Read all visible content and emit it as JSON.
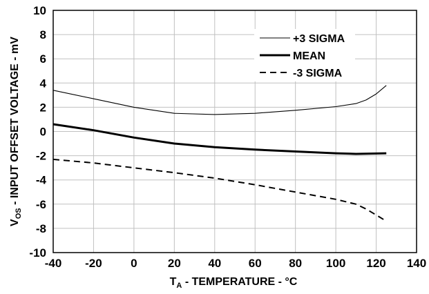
{
  "chart_data": {
    "type": "line",
    "title": "",
    "xlabel": {
      "main": "T",
      "sub": "A",
      "rest": " - TEMPERATURE - °C"
    },
    "ylabel": {
      "main": "V",
      "sub": "OS",
      "rest": " - INPUT OFFSET VOLTAGE - mV"
    },
    "xlim": [
      -40,
      140
    ],
    "ylim": [
      -10,
      10
    ],
    "xticks": [
      "-40",
      "-20",
      "0",
      "20",
      "40",
      "60",
      "80",
      "100",
      "120",
      "140"
    ],
    "yticks": [
      "10",
      "8",
      "6",
      "4",
      "2",
      "0",
      "-2",
      "-4",
      "-6",
      "-8",
      "-10"
    ],
    "grid": true,
    "legend_position": "top-right",
    "series": [
      {
        "name": "+3 SIGMA",
        "style": "thin",
        "x": [
          -40,
          -20,
          0,
          20,
          40,
          60,
          80,
          100,
          110,
          115,
          120,
          125
        ],
        "y": [
          3.4,
          2.7,
          2.0,
          1.5,
          1.4,
          1.5,
          1.75,
          2.05,
          2.3,
          2.6,
          3.1,
          3.8
        ]
      },
      {
        "name": "MEAN",
        "style": "thick",
        "x": [
          -40,
          -20,
          0,
          20,
          40,
          60,
          80,
          100,
          110,
          125
        ],
        "y": [
          0.6,
          0.1,
          -0.5,
          -1.0,
          -1.3,
          -1.5,
          -1.65,
          -1.8,
          -1.85,
          -1.8
        ]
      },
      {
        "name": "-3 SIGMA",
        "style": "dashed",
        "x": [
          -40,
          -20,
          0,
          20,
          40,
          60,
          80,
          100,
          110,
          115,
          120,
          125
        ],
        "y": [
          -2.3,
          -2.6,
          -3.0,
          -3.4,
          -3.85,
          -4.4,
          -5.0,
          -5.6,
          -6.0,
          -6.4,
          -6.9,
          -7.4
        ]
      }
    ],
    "colors": {
      "line": "#000000",
      "grid": "#c0c0c0",
      "background": "#ffffff"
    }
  }
}
